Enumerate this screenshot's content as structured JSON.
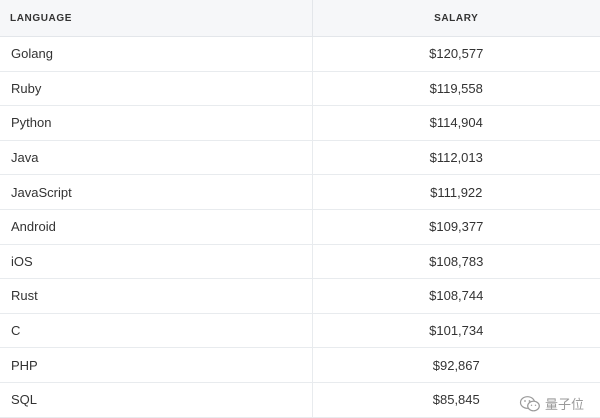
{
  "table": {
    "headers": [
      "LANGUAGE",
      "SALARY"
    ],
    "rows": [
      {
        "language": "Golang",
        "salary": "$120,577"
      },
      {
        "language": "Ruby",
        "salary": "$119,558"
      },
      {
        "language": "Python",
        "salary": "$114,904"
      },
      {
        "language": "Java",
        "salary": "$112,013"
      },
      {
        "language": "JavaScript",
        "salary": "$111,922"
      },
      {
        "language": "Android",
        "salary": "$109,377"
      },
      {
        "language": "iOS",
        "salary": "$108,783"
      },
      {
        "language": "Rust",
        "salary": "$108,744"
      },
      {
        "language": "C",
        "salary": "$101,734"
      },
      {
        "language": "PHP",
        "salary": "$92,867"
      },
      {
        "language": "SQL",
        "salary": "$85,845"
      }
    ]
  },
  "watermark": {
    "text": "量子位",
    "icon": "wechat-logo-icon"
  }
}
